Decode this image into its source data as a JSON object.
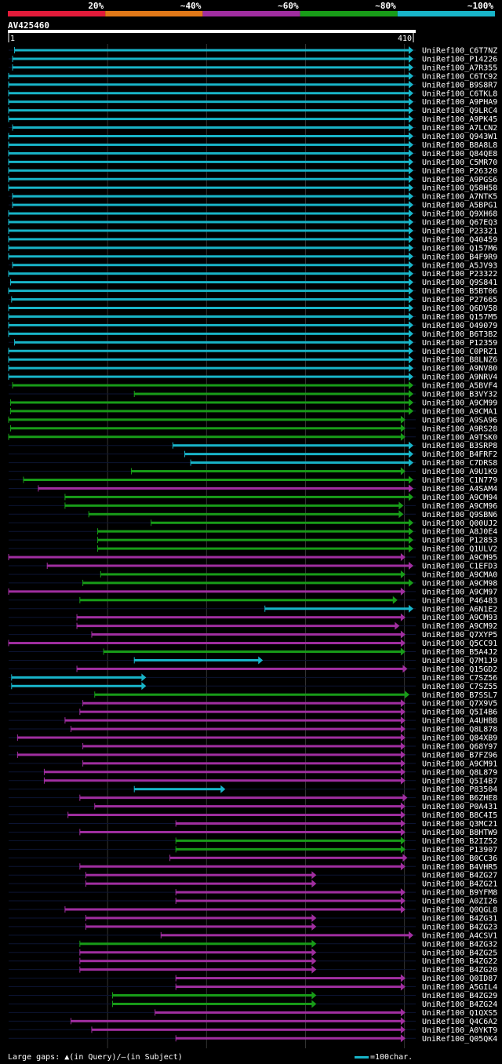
{
  "chart_data": {
    "type": "alignment-overview",
    "query_id": "AV425460",
    "query_length": 410,
    "ruler_start": "1",
    "ruler_end": "410",
    "legend": [
      {
        "label": "20%",
        "color": "#e21b3a"
      },
      {
        "label": "~40%",
        "color": "#e07818"
      },
      {
        "label": "~60%",
        "color": "#a02ea0"
      },
      {
        "label": "~80%",
        "color": "#189c18"
      },
      {
        "label": "~100%",
        "color": "#18b4c8"
      }
    ],
    "hits": [
      {
        "id": "UniRef100_C6T7NZ",
        "start": 7,
        "end": 410,
        "identity": "100"
      },
      {
        "id": "UniRef100_P14226",
        "start": 5,
        "end": 410,
        "identity": "100"
      },
      {
        "id": "UniRef100_A7R355",
        "start": 5,
        "end": 410,
        "identity": "100"
      },
      {
        "id": "UniRef100_C6TC92",
        "start": 1,
        "end": 410,
        "identity": "100"
      },
      {
        "id": "UniRef100_B9S8R7",
        "start": 1,
        "end": 410,
        "identity": "100"
      },
      {
        "id": "UniRef100_C6TKL8",
        "start": 1,
        "end": 410,
        "identity": "100"
      },
      {
        "id": "UniRef100_A9PHA9",
        "start": 1,
        "end": 410,
        "identity": "100"
      },
      {
        "id": "UniRef100_Q9LRC4",
        "start": 1,
        "end": 410,
        "identity": "100"
      },
      {
        "id": "UniRef100_A9PK45",
        "start": 1,
        "end": 410,
        "identity": "100"
      },
      {
        "id": "UniRef100_A7LCN2",
        "start": 5,
        "end": 410,
        "identity": "100"
      },
      {
        "id": "UniRef100_Q943W1",
        "start": 1,
        "end": 410,
        "identity": "100"
      },
      {
        "id": "UniRef100_B8A8L8",
        "start": 1,
        "end": 410,
        "identity": "100"
      },
      {
        "id": "UniRef100_Q84QE8",
        "start": 1,
        "end": 410,
        "identity": "100"
      },
      {
        "id": "UniRef100_C5MR70",
        "start": 1,
        "end": 410,
        "identity": "100"
      },
      {
        "id": "UniRef100_P26320",
        "start": 1,
        "end": 410,
        "identity": "100"
      },
      {
        "id": "UniRef100_A9PGS6",
        "start": 1,
        "end": 410,
        "identity": "100"
      },
      {
        "id": "UniRef100_Q58H58",
        "start": 1,
        "end": 410,
        "identity": "100"
      },
      {
        "id": "UniRef100_A7NTK5",
        "start": 5,
        "end": 410,
        "identity": "100"
      },
      {
        "id": "UniRef100_A5BPG1",
        "start": 5,
        "end": 410,
        "identity": "100"
      },
      {
        "id": "UniRef100_Q9XH68",
        "start": 1,
        "end": 410,
        "identity": "100"
      },
      {
        "id": "UniRef100_Q67EQ3",
        "start": 1,
        "end": 410,
        "identity": "100"
      },
      {
        "id": "UniRef100_P23321",
        "start": 1,
        "end": 410,
        "identity": "100"
      },
      {
        "id": "UniRef100_Q40459",
        "start": 1,
        "end": 410,
        "identity": "100"
      },
      {
        "id": "UniRef100_Q157M6",
        "start": 1,
        "end": 410,
        "identity": "100"
      },
      {
        "id": "UniRef100_B4F9R9",
        "start": 1,
        "end": 410,
        "identity": "100"
      },
      {
        "id": "UniRef100_A5JV93",
        "start": 5,
        "end": 410,
        "identity": "100"
      },
      {
        "id": "UniRef100_P23322",
        "start": 1,
        "end": 410,
        "identity": "100"
      },
      {
        "id": "UniRef100_Q9S841",
        "start": 3,
        "end": 410,
        "identity": "100"
      },
      {
        "id": "UniRef100_B5BT06",
        "start": 1,
        "end": 410,
        "identity": "100"
      },
      {
        "id": "UniRef100_P27665",
        "start": 4,
        "end": 410,
        "identity": "100"
      },
      {
        "id": "UniRef100_Q6DV58",
        "start": 1,
        "end": 410,
        "identity": "100"
      },
      {
        "id": "UniRef100_Q157M5",
        "start": 1,
        "end": 410,
        "identity": "100"
      },
      {
        "id": "UniRef100_O49079",
        "start": 1,
        "end": 410,
        "identity": "100"
      },
      {
        "id": "UniRef100_B6T3B2",
        "start": 1,
        "end": 410,
        "identity": "100"
      },
      {
        "id": "UniRef100_P12359",
        "start": 7,
        "end": 410,
        "identity": "100"
      },
      {
        "id": "UniRef100_C0PRZ1",
        "start": 1,
        "end": 410,
        "identity": "100"
      },
      {
        "id": "UniRef100_B8LNZ6",
        "start": 1,
        "end": 410,
        "identity": "100"
      },
      {
        "id": "UniRef100_A9NV80",
        "start": 1,
        "end": 410,
        "identity": "100"
      },
      {
        "id": "UniRef100_A9NRV4",
        "start": 1,
        "end": 410,
        "identity": "100"
      },
      {
        "id": "UniRef100_A5BVF4",
        "start": 5,
        "end": 410,
        "identity": "80"
      },
      {
        "id": "UniRef100_B3VY32",
        "start": 128,
        "end": 410,
        "identity": "80"
      },
      {
        "id": "UniRef100_A9CM99",
        "start": 3,
        "end": 410,
        "identity": "80"
      },
      {
        "id": "UniRef100_A9CMA1",
        "start": 3,
        "end": 410,
        "identity": "80"
      },
      {
        "id": "UniRef100_A9SA96",
        "start": 1,
        "end": 402,
        "identity": "80"
      },
      {
        "id": "UniRef100_A9RS28",
        "start": 3,
        "end": 402,
        "identity": "80"
      },
      {
        "id": "UniRef100_A9TSK0",
        "start": 1,
        "end": 402,
        "identity": "80"
      },
      {
        "id": "UniRef100_B3SRP8",
        "start": 167,
        "end": 410,
        "identity": "100"
      },
      {
        "id": "UniRef100_B4FRF2",
        "start": 179,
        "end": 410,
        "identity": "100"
      },
      {
        "id": "UniRef100_C7DRS8",
        "start": 185,
        "end": 410,
        "identity": "100"
      },
      {
        "id": "UniRef100_A9U1K9",
        "start": 125,
        "end": 402,
        "identity": "80"
      },
      {
        "id": "UniRef100_C1N779",
        "start": 16,
        "end": 410,
        "identity": "80"
      },
      {
        "id": "UniRef100_A4SAM4",
        "start": 31,
        "end": 410,
        "identity": "60"
      },
      {
        "id": "UniRef100_A9CM94",
        "start": 58,
        "end": 410,
        "identity": "80"
      },
      {
        "id": "UniRef100_A9CM96",
        "start": 58,
        "end": 400,
        "identity": "80"
      },
      {
        "id": "UniRef100_Q9SBN6",
        "start": 82,
        "end": 400,
        "identity": "80"
      },
      {
        "id": "UniRef100_Q00UJ2",
        "start": 145,
        "end": 410,
        "identity": "80"
      },
      {
        "id": "UniRef100_A8J0E4",
        "start": 91,
        "end": 410,
        "identity": "80"
      },
      {
        "id": "UniRef100_P12853",
        "start": 91,
        "end": 410,
        "identity": "80"
      },
      {
        "id": "UniRef100_Q1ULV2",
        "start": 91,
        "end": 410,
        "identity": "80"
      },
      {
        "id": "UniRef100_A9CM95",
        "start": 1,
        "end": 402,
        "identity": "60"
      },
      {
        "id": "UniRef100_C1EFD3",
        "start": 40,
        "end": 410,
        "identity": "60"
      },
      {
        "id": "UniRef100_A9CMA0",
        "start": 94,
        "end": 402,
        "identity": "80"
      },
      {
        "id": "UniRef100_A9CM98",
        "start": 76,
        "end": 410,
        "identity": "80"
      },
      {
        "id": "UniRef100_A9CM97",
        "start": 1,
        "end": 402,
        "identity": "60"
      },
      {
        "id": "UniRef100_P46483",
        "start": 73,
        "end": 394,
        "identity": "80"
      },
      {
        "id": "UniRef100_A6N1E2",
        "start": 260,
        "end": 410,
        "identity": "100"
      },
      {
        "id": "UniRef100_A9CM93",
        "start": 70,
        "end": 402,
        "identity": "60"
      },
      {
        "id": "UniRef100_A9CM92",
        "start": 70,
        "end": 396,
        "identity": "60"
      },
      {
        "id": "UniRef100_Q7XYP5",
        "start": 85,
        "end": 402,
        "identity": "60"
      },
      {
        "id": "UniRef100_Q5CC91",
        "start": 1,
        "end": 402,
        "identity": "60"
      },
      {
        "id": "UniRef100_B5A4J2",
        "start": 97,
        "end": 402,
        "identity": "80"
      },
      {
        "id": "UniRef100_Q7M1J9",
        "start": 128,
        "end": 258,
        "identity": "100"
      },
      {
        "id": "UniRef100_Q15GD2",
        "start": 70,
        "end": 404,
        "identity": "60"
      },
      {
        "id": "UniRef100_C7SZ56",
        "start": 4,
        "end": 140,
        "identity": "100"
      },
      {
        "id": "UniRef100_C7SZ55",
        "start": 4,
        "end": 140,
        "identity": "100"
      },
      {
        "id": "UniRef100_B7SSL7",
        "start": 88,
        "end": 406,
        "identity": "80"
      },
      {
        "id": "UniRef100_Q7X9V5",
        "start": 76,
        "end": 402,
        "identity": "60"
      },
      {
        "id": "UniRef100_Q5I4B6",
        "start": 73,
        "end": 402,
        "identity": "60"
      },
      {
        "id": "UniRef100_A4UHB8",
        "start": 58,
        "end": 402,
        "identity": "60"
      },
      {
        "id": "UniRef100_Q8L878",
        "start": 64,
        "end": 402,
        "identity": "60"
      },
      {
        "id": "UniRef100_Q84XB9",
        "start": 10,
        "end": 402,
        "identity": "60"
      },
      {
        "id": "UniRef100_Q68Y97",
        "start": 76,
        "end": 402,
        "identity": "60"
      },
      {
        "id": "UniRef100_B7FZ96",
        "start": 10,
        "end": 402,
        "identity": "60"
      },
      {
        "id": "UniRef100_A9CM91",
        "start": 76,
        "end": 402,
        "identity": "60"
      },
      {
        "id": "UniRef100_Q8L879",
        "start": 37,
        "end": 402,
        "identity": "60"
      },
      {
        "id": "UniRef100_Q5I4B7",
        "start": 37,
        "end": 402,
        "identity": "60"
      },
      {
        "id": "UniRef100_P83504",
        "start": 128,
        "end": 220,
        "identity": "100"
      },
      {
        "id": "UniRef100_B6ZHE8",
        "start": 73,
        "end": 404,
        "identity": "60"
      },
      {
        "id": "UniRef100_P0A431",
        "start": 88,
        "end": 402,
        "identity": "60"
      },
      {
        "id": "UniRef100_B8C4I5",
        "start": 61,
        "end": 402,
        "identity": "60"
      },
      {
        "id": "UniRef100_Q3MC21",
        "start": 170,
        "end": 402,
        "identity": "60"
      },
      {
        "id": "UniRef100_B8HTW9",
        "start": 73,
        "end": 402,
        "identity": "60"
      },
      {
        "id": "UniRef100_B2IZ52",
        "start": 170,
        "end": 402,
        "identity": "80"
      },
      {
        "id": "UniRef100_P13907",
        "start": 170,
        "end": 402,
        "identity": "80"
      },
      {
        "id": "UniRef100_B0CC36",
        "start": 164,
        "end": 404,
        "identity": "60"
      },
      {
        "id": "UniRef100_B4VHR5",
        "start": 73,
        "end": 402,
        "identity": "60"
      },
      {
        "id": "UniRef100_B4ZG27",
        "start": 79,
        "end": 312,
        "identity": "60"
      },
      {
        "id": "UniRef100_B4ZG21",
        "start": 79,
        "end": 312,
        "identity": "60"
      },
      {
        "id": "UniRef100_B9YFM8",
        "start": 170,
        "end": 402,
        "identity": "60"
      },
      {
        "id": "UniRef100_A0ZI26",
        "start": 170,
        "end": 402,
        "identity": "60"
      },
      {
        "id": "UniRef100_Q0QGL8",
        "start": 58,
        "end": 402,
        "identity": "60"
      },
      {
        "id": "UniRef100_B4ZG31",
        "start": 79,
        "end": 312,
        "identity": "60"
      },
      {
        "id": "UniRef100_B4ZG23",
        "start": 79,
        "end": 312,
        "identity": "60"
      },
      {
        "id": "UniRef100_A4CSV1",
        "start": 155,
        "end": 410,
        "identity": "60"
      },
      {
        "id": "UniRef100_B4ZG32",
        "start": 73,
        "end": 312,
        "identity": "80"
      },
      {
        "id": "UniRef100_B4ZG25",
        "start": 73,
        "end": 312,
        "identity": "60"
      },
      {
        "id": "UniRef100_B4ZG22",
        "start": 73,
        "end": 312,
        "identity": "60"
      },
      {
        "id": "UniRef100_B4ZG20",
        "start": 73,
        "end": 312,
        "identity": "60"
      },
      {
        "id": "UniRef100_Q0ID87",
        "start": 170,
        "end": 402,
        "identity": "60"
      },
      {
        "id": "UniRef100_A5GIL4",
        "start": 170,
        "end": 402,
        "identity": "60"
      },
      {
        "id": "UniRef100_B4ZG29",
        "start": 106,
        "end": 312,
        "identity": "80"
      },
      {
        "id": "UniRef100_B4ZG24",
        "start": 106,
        "end": 312,
        "identity": "80"
      },
      {
        "id": "UniRef100_Q1QXS5",
        "start": 149,
        "end": 402,
        "identity": "60"
      },
      {
        "id": "UniRef100_Q4C6A2",
        "start": 64,
        "end": 402,
        "identity": "60"
      },
      {
        "id": "UniRef100_A0YKT9",
        "start": 85,
        "end": 402,
        "identity": "60"
      },
      {
        "id": "UniRef100_Q05QK4",
        "start": 170,
        "end": 402,
        "identity": "60"
      }
    ],
    "footer_gaps": "Large gaps: ",
    "footer_query": "(in Query)/",
    "footer_subject": "(in Subject)",
    "footer_scale": "=100char."
  }
}
